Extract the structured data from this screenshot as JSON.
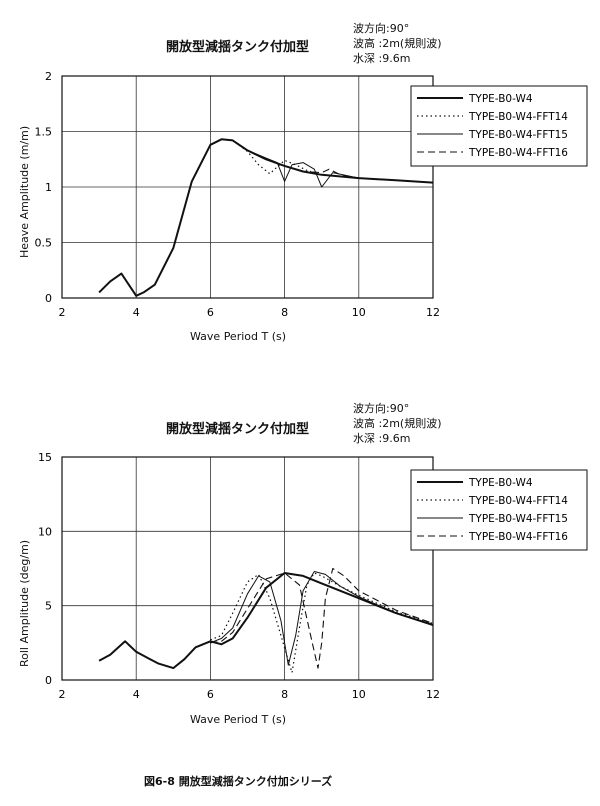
{
  "caption": "図6-8 開放型減揺タンク付加シリーズ",
  "legend": [
    {
      "label": "TYPE-B0-W4",
      "style": "solid-thick"
    },
    {
      "label": "TYPE-B0-W4-FFT14",
      "style": "dotted"
    },
    {
      "label": "TYPE-B0-W4-FFT15",
      "style": "solid-thin"
    },
    {
      "label": "TYPE-B0-W4-FFT16",
      "style": "dashed"
    }
  ],
  "chart_data": [
    {
      "type": "line",
      "title": "開放型減揺タンク付加型",
      "conditions": [
        "波方向:90°",
        "波高 :2m(規則波)",
        "水深 :9.6m"
      ],
      "xlabel": "Wave Period  T (s)",
      "ylabel": "Heave Amplitude (m/m)",
      "xlim": [
        2,
        12
      ],
      "ylim": [
        0,
        2
      ],
      "xticks": [
        "2",
        "4",
        "6",
        "8",
        "10",
        "12"
      ],
      "yticks": [
        "0",
        "0.5",
        "1",
        "1.5",
        "2"
      ],
      "series": [
        {
          "name": "TYPE-B0-W4",
          "x": [
            3.0,
            3.3,
            3.6,
            3.8,
            4.0,
            4.2,
            4.5,
            5.0,
            5.5,
            6.0,
            6.3,
            6.6,
            7.0,
            7.5,
            8.0,
            8.5,
            9.0,
            10.0,
            11.0,
            12.0
          ],
          "y": [
            0.05,
            0.15,
            0.22,
            0.12,
            0.02,
            0.05,
            0.12,
            0.45,
            1.05,
            1.38,
            1.43,
            1.42,
            1.33,
            1.25,
            1.19,
            1.14,
            1.11,
            1.08,
            1.06,
            1.04
          ]
        },
        {
          "name": "TYPE-B0-W4-FFT14",
          "x": [
            6.0,
            6.3,
            6.6,
            7.0,
            7.3,
            7.6,
            7.8,
            8.0,
            8.3,
            8.6,
            9.0,
            10.0,
            11.0,
            12.0
          ],
          "y": [
            1.38,
            1.43,
            1.42,
            1.32,
            1.2,
            1.12,
            1.18,
            1.24,
            1.2,
            1.15,
            1.11,
            1.08,
            1.06,
            1.04
          ]
        },
        {
          "name": "TYPE-B0-W4-FFT15",
          "x": [
            6.0,
            6.3,
            6.6,
            7.0,
            7.5,
            7.8,
            8.0,
            8.2,
            8.5,
            8.8,
            9.0,
            9.3,
            10.0,
            11.0,
            12.0
          ],
          "y": [
            1.38,
            1.43,
            1.42,
            1.33,
            1.26,
            1.22,
            1.05,
            1.2,
            1.22,
            1.16,
            1.0,
            1.13,
            1.08,
            1.06,
            1.04
          ]
        },
        {
          "name": "TYPE-B0-W4-FFT16",
          "x": [
            6.0,
            6.3,
            6.6,
            7.0,
            7.5,
            8.0,
            8.5,
            9.0,
            9.2,
            9.5,
            10.0,
            11.0,
            12.0
          ],
          "y": [
            1.38,
            1.43,
            1.42,
            1.33,
            1.25,
            1.19,
            1.14,
            1.13,
            1.16,
            1.11,
            1.08,
            1.06,
            1.04
          ]
        }
      ]
    },
    {
      "type": "line",
      "title": "開放型減揺タンク付加型",
      "conditions": [
        "波方向:90°",
        "波高 :2m(規則波)",
        "水深 :9.6m"
      ],
      "xlabel": "Wave Period  T (s)",
      "ylabel": "Roll Amplitude (deg/m)",
      "xlim": [
        2,
        12
      ],
      "ylim": [
        0,
        15
      ],
      "xticks": [
        "2",
        "4",
        "6",
        "8",
        "10",
        "12"
      ],
      "yticks": [
        "0",
        "5",
        "10",
        "15"
      ],
      "series": [
        {
          "name": "TYPE-B0-W4",
          "x": [
            3.0,
            3.3,
            3.7,
            4.0,
            4.3,
            4.6,
            5.0,
            5.3,
            5.6,
            6.0,
            6.3,
            6.6,
            7.0,
            7.5,
            8.0,
            8.5,
            9.0,
            9.5,
            10.0,
            11.0,
            12.0
          ],
          "y": [
            1.3,
            1.7,
            2.6,
            1.9,
            1.5,
            1.1,
            0.8,
            1.4,
            2.2,
            2.6,
            2.4,
            2.8,
            4.2,
            6.2,
            7.2,
            7.0,
            6.5,
            6.0,
            5.5,
            4.5,
            3.7
          ]
        },
        {
          "name": "TYPE-B0-W4-FFT14",
          "x": [
            6.0,
            6.3,
            6.6,
            7.0,
            7.3,
            7.6,
            7.9,
            8.2,
            8.4,
            8.6,
            8.8,
            9.0,
            9.5,
            10.0,
            11.0,
            12.0
          ],
          "y": [
            2.7,
            3.0,
            4.5,
            6.6,
            7.1,
            5.5,
            3.0,
            0.5,
            3.5,
            6.4,
            7.2,
            7.0,
            6.3,
            5.7,
            4.6,
            3.8
          ]
        },
        {
          "name": "TYPE-B0-W4-FFT15",
          "x": [
            6.0,
            6.3,
            6.6,
            7.0,
            7.3,
            7.6,
            7.9,
            8.1,
            8.3,
            8.5,
            8.8,
            9.1,
            9.5,
            10.0,
            11.0,
            12.0
          ],
          "y": [
            2.5,
            2.8,
            3.5,
            5.8,
            7.0,
            6.6,
            4.0,
            1.0,
            3.0,
            6.0,
            7.3,
            7.1,
            6.3,
            5.6,
            4.5,
            3.7
          ]
        },
        {
          "name": "TYPE-B0-W4-FFT16",
          "x": [
            6.0,
            6.3,
            6.6,
            7.0,
            7.5,
            8.0,
            8.4,
            8.7,
            8.9,
            9.0,
            9.1,
            9.3,
            9.6,
            10.0,
            11.0,
            12.0
          ],
          "y": [
            2.5,
            2.6,
            3.2,
            4.8,
            6.8,
            7.2,
            6.4,
            3.0,
            0.8,
            2.5,
            5.5,
            7.5,
            7.0,
            6.0,
            4.7,
            3.8
          ]
        }
      ]
    }
  ]
}
